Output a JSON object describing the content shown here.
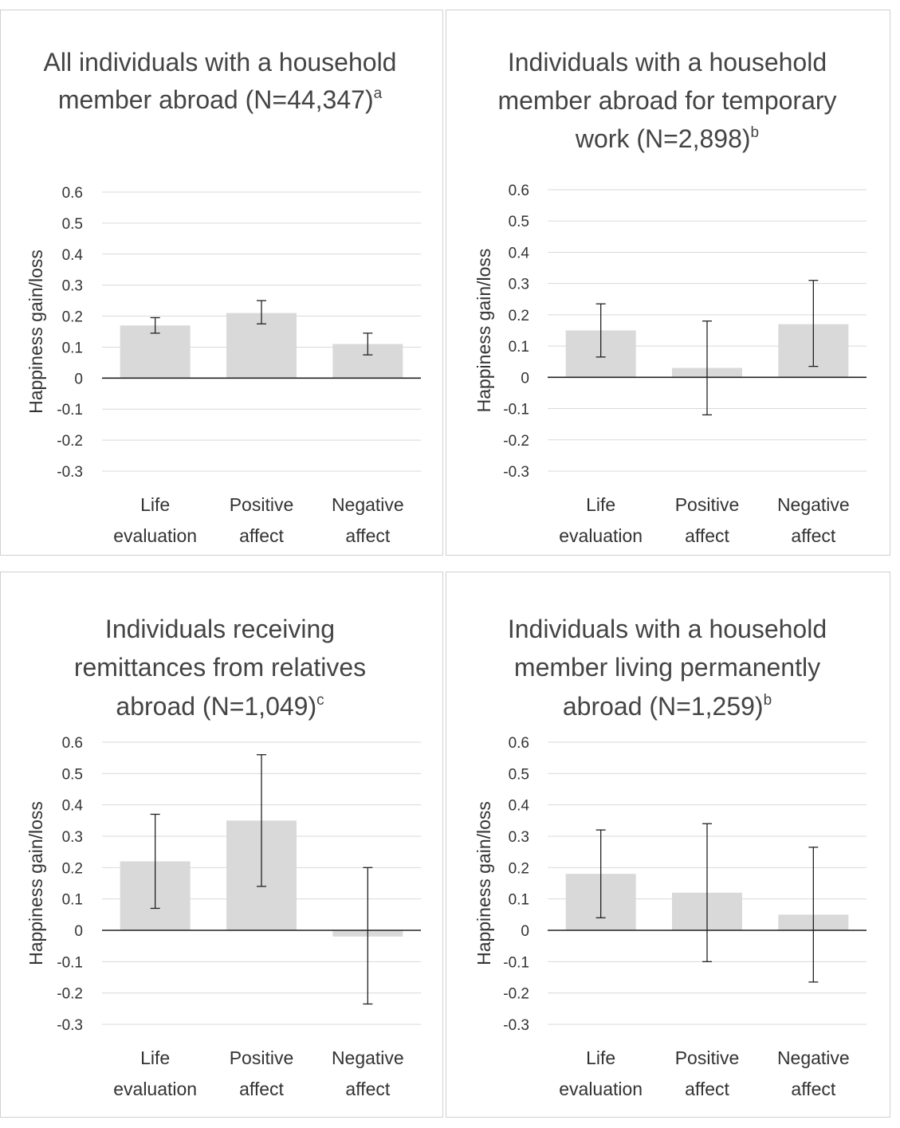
{
  "chart_data": [
    {
      "type": "bar",
      "title_lines": [
        "All individuals with a household",
        "member abroad (N=44,347)"
      ],
      "title_sup": "a",
      "ylabel": "Happiness gain/loss",
      "categories": [
        [
          "Life",
          "evaluation"
        ],
        [
          "Positive",
          "affect"
        ],
        [
          "Negative",
          "affect"
        ]
      ],
      "values": [
        0.17,
        0.21,
        0.11
      ],
      "error_low": [
        0.145,
        0.175,
        0.075
      ],
      "error_high": [
        0.195,
        0.25,
        0.145
      ],
      "ylim": [
        -0.3,
        0.6
      ],
      "yticks": [
        "0.6",
        "0.5",
        "0.4",
        "0.3",
        "0.2",
        "0.1",
        "0",
        "-0.1",
        "-0.2",
        "-0.3"
      ],
      "grid": true
    },
    {
      "type": "bar",
      "title_lines": [
        "Individuals with a household",
        "member abroad for temporary",
        "work (N=2,898)"
      ],
      "title_sup": "b",
      "ylabel": "Happiness gain/loss",
      "categories": [
        [
          "Life",
          "evaluation"
        ],
        [
          "Positive",
          "affect"
        ],
        [
          "Negative",
          "affect"
        ]
      ],
      "values": [
        0.15,
        0.03,
        0.17
      ],
      "error_low": [
        0.065,
        -0.12,
        0.035
      ],
      "error_high": [
        0.235,
        0.18,
        0.31
      ],
      "ylim": [
        -0.3,
        0.6
      ],
      "yticks": [
        "0.6",
        "0.5",
        "0.4",
        "0.3",
        "0.2",
        "0.1",
        "0",
        "-0.1",
        "-0.2",
        "-0.3"
      ],
      "grid": true
    },
    {
      "type": "bar",
      "title_lines": [
        "Individuals receiving",
        "remittances from relatives",
        "abroad (N=1,049)"
      ],
      "title_sup": "c",
      "ylabel": "Happiness gain/loss",
      "categories": [
        [
          "Life",
          "evaluation"
        ],
        [
          "Positive",
          "affect"
        ],
        [
          "Negative",
          "affect"
        ]
      ],
      "values": [
        0.22,
        0.35,
        -0.02
      ],
      "error_low": [
        0.07,
        0.14,
        -0.235
      ],
      "error_high": [
        0.37,
        0.56,
        0.2
      ],
      "ylim": [
        -0.3,
        0.6
      ],
      "yticks": [
        "0.6",
        "0.5",
        "0.4",
        "0.3",
        "0.2",
        "0.1",
        "0",
        "-0.1",
        "-0.2",
        "-0.3"
      ],
      "grid": true
    },
    {
      "type": "bar",
      "title_lines": [
        "Individuals with a household",
        "member living permanently",
        "abroad (N=1,259)"
      ],
      "title_sup": "b",
      "ylabel": "Happiness gain/loss",
      "categories": [
        [
          "Life",
          "evaluation"
        ],
        [
          "Positive",
          "affect"
        ],
        [
          "Negative",
          "affect"
        ]
      ],
      "values": [
        0.18,
        0.12,
        0.05
      ],
      "error_low": [
        0.04,
        -0.1,
        -0.165
      ],
      "error_high": [
        0.32,
        0.34,
        0.265
      ],
      "ylim": [
        -0.3,
        0.6
      ],
      "yticks": [
        "0.6",
        "0.5",
        "0.4",
        "0.3",
        "0.2",
        "0.1",
        "0",
        "-0.1",
        "-0.2",
        "-0.3"
      ],
      "grid": true
    }
  ]
}
